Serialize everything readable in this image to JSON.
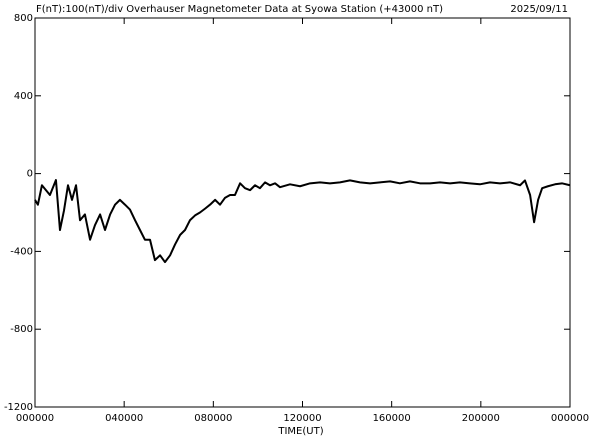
{
  "chart_data": {
    "type": "line",
    "title": "F(nT):100(nT)/div  Overhauser Magnetometer Data at Syowa Station (+43000 nT)",
    "date": "2025/09/11",
    "x_label": "TIME(UT)",
    "color": "#000000",
    "x": [
      0,
      0.13,
      0.31,
      0.67,
      0.94,
      1.12,
      1.3,
      1.48,
      1.66,
      1.84,
      2.02,
      2.24,
      2.47,
      2.69,
      2.92,
      3.14,
      3.37,
      3.59,
      3.81,
      4.04,
      4.26,
      4.49,
      4.71,
      4.93,
      5.16,
      5.38,
      5.61,
      5.83,
      6.06,
      6.28,
      6.51,
      6.73,
      6.95,
      7.18,
      7.4,
      7.63,
      7.85,
      8.08,
      8.3,
      8.52,
      8.75,
      8.97,
      9.2,
      9.42,
      9.65,
      9.87,
      10.09,
      10.32,
      10.54,
      10.77,
      10.99,
      11.44,
      11.89,
      12.34,
      12.79,
      13.23,
      13.68,
      14.13,
      14.58,
      15.03,
      15.48,
      15.93,
      16.37,
      16.82,
      17.27,
      17.72,
      18.17,
      18.62,
      19.06,
      19.51,
      19.96,
      20.41,
      20.86,
      21.31,
      21.76,
      21.98,
      22.21,
      22.39,
      22.57,
      22.75,
      23.01,
      23.33,
      23.64,
      24
    ],
    "values": [
      -135,
      -160,
      -60,
      -110,
      -33,
      -290,
      -190,
      -60,
      -135,
      -60,
      -240,
      -210,
      -340,
      -265,
      -210,
      -290,
      -210,
      -160,
      -135,
      -160,
      -185,
      -240,
      -290,
      -340,
      -340,
      -445,
      -420,
      -455,
      -420,
      -365,
      -315,
      -290,
      -240,
      -215,
      -200,
      -180,
      -160,
      -135,
      -160,
      -125,
      -110,
      -110,
      -50,
      -75,
      -85,
      -60,
      -75,
      -45,
      -60,
      -50,
      -70,
      -55,
      -65,
      -50,
      -45,
      -50,
      -45,
      -35,
      -45,
      -50,
      -45,
      -40,
      -50,
      -40,
      -50,
      -50,
      -45,
      -50,
      -45,
      -50,
      -55,
      -45,
      -50,
      -45,
      -60,
      -35,
      -110,
      -250,
      -135,
      -75,
      -65,
      -55,
      -50,
      -60
    ],
    "xlim": [
      0,
      24
    ],
    "xticks": [
      {
        "value": 0,
        "label": "000000"
      },
      {
        "value": 4,
        "label": "040000"
      },
      {
        "value": 8,
        "label": "080000"
      },
      {
        "value": 12,
        "label": "120000"
      },
      {
        "value": 16,
        "label": "160000"
      },
      {
        "value": 20,
        "label": "200000"
      },
      {
        "value": 24,
        "label": "000000"
      }
    ],
    "ylim": [
      -1200,
      800
    ],
    "yticks": [
      -1200,
      -800,
      -400,
      0,
      400,
      800
    ]
  }
}
